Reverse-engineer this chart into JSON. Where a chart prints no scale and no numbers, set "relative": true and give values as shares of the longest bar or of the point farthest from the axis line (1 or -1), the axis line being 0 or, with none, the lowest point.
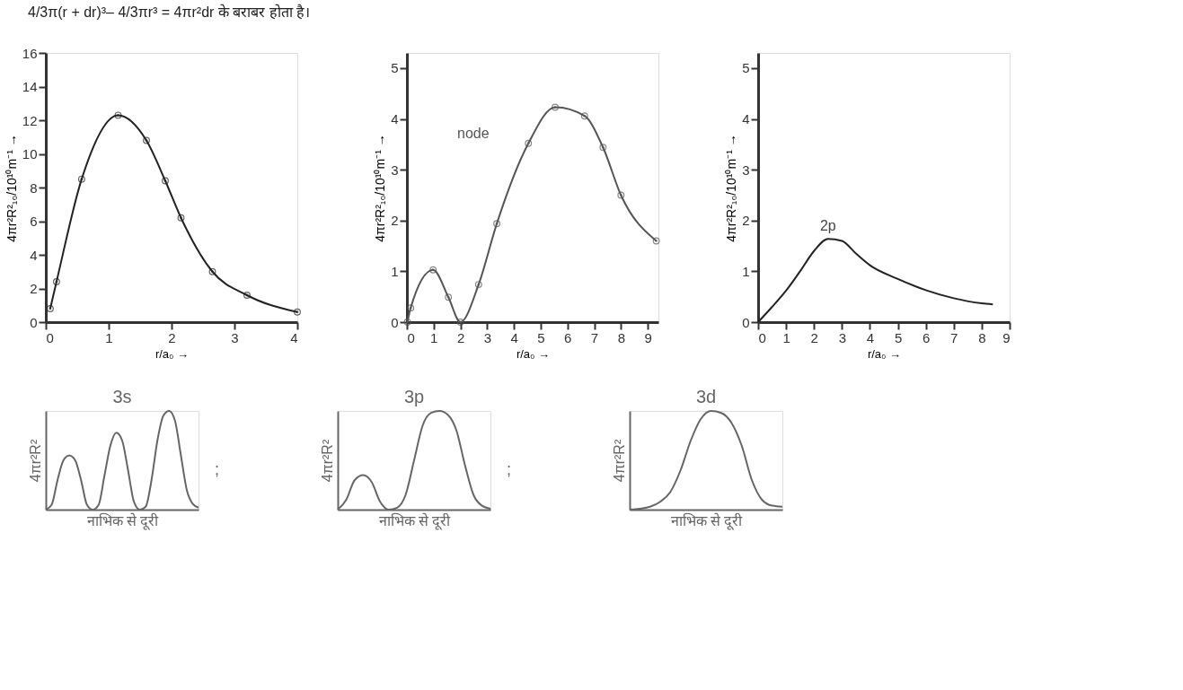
{
  "chart_data": [
    {
      "type": "line",
      "xlabel": "r/a₀ →",
      "ylabel": "4πr²R²₁₀/10¹⁰m⁻¹ →",
      "xlim": [
        0,
        4
      ],
      "ylim": [
        0,
        16
      ],
      "xticks": [
        0,
        1,
        2,
        3,
        4
      ],
      "yticks": [
        0,
        2,
        4,
        6,
        8,
        10,
        12,
        14,
        16
      ],
      "marker": "circle",
      "annotations": [
        "4/3π(r + dr)³– 4/3πr³ = 4πr²dr के बराबर होता है।"
      ],
      "series": [
        {
          "color": "#222222",
          "x": [
            0.07,
            0.17,
            0.57,
            1.15,
            1.6,
            1.9,
            2.15,
            2.65,
            3.2,
            4.0
          ],
          "values": [
            0.8,
            2.4,
            8.5,
            12.3,
            10.8,
            8.4,
            6.2,
            3.0,
            1.6,
            0.6
          ]
        }
      ]
    },
    {
      "type": "line",
      "xlabel": "r/a₀ →",
      "ylabel": "4πr²R²₁₀/10¹⁰m⁻¹ →",
      "xlim": [
        0,
        9.4
      ],
      "ylim": [
        0,
        5.3
      ],
      "xticks": [
        0,
        1,
        2,
        3,
        4,
        5,
        6,
        7,
        8,
        9
      ],
      "yticks": [
        0,
        1,
        2,
        3,
        4,
        5
      ],
      "marker": "circle",
      "annotations": [
        "node"
      ],
      "series": [
        {
          "color": "#555555",
          "x": [
            0.02,
            0.14,
            0.98,
            1.55,
            2.0,
            2.68,
            3.36,
            4.54,
            5.54,
            6.64,
            7.33,
            8.0,
            9.32
          ],
          "values": [
            0.0,
            0.28,
            1.03,
            0.49,
            0.0,
            0.74,
            1.94,
            3.52,
            4.23,
            4.06,
            3.44,
            2.5,
            1.6
          ]
        }
      ]
    },
    {
      "type": "line",
      "xlabel": "r/a₀ →",
      "ylabel": "4πr²R²₁₀/10¹⁰m⁻¹ →",
      "xlim": [
        0,
        9
      ],
      "ylim": [
        0,
        5.3
      ],
      "xticks": [
        0,
        1,
        2,
        3,
        4,
        5,
        6,
        7,
        8,
        9
      ],
      "yticks": [
        0,
        1,
        2,
        3,
        4,
        5
      ],
      "annotations": [
        {
          "text": "2p",
          "x": 2.5,
          "y": 1.65
        }
      ],
      "series": [
        {
          "color": "#222222",
          "x": [
            0,
            0.5,
            1,
            1.5,
            2,
            2.5,
            3,
            3.5,
            4,
            5,
            6,
            7,
            8,
            8.4
          ],
          "values": [
            0,
            0.3,
            0.62,
            1.0,
            1.4,
            1.64,
            1.6,
            1.35,
            1.12,
            0.85,
            0.63,
            0.47,
            0.37,
            0.35
          ]
        }
      ]
    },
    {
      "type": "line",
      "relative": true,
      "title": "3s",
      "xlabel": "नाभिक से दूरी",
      "ylabel": "4πr²R²",
      "annotations": [
        ";"
      ],
      "categories": [
        null,
        null,
        null,
        null,
        null,
        null,
        null,
        null,
        null,
        null,
        null,
        null,
        null,
        null,
        null,
        null,
        null,
        null,
        null,
        null,
        null,
        null,
        null,
        null,
        null,
        null,
        null
      ],
      "series": [
        {
          "color": "#666666",
          "values": [
            0,
            0.05,
            0.3,
            0.5,
            0.55,
            0.5,
            0.3,
            0.05,
            0,
            0.05,
            0.35,
            0.65,
            0.78,
            0.7,
            0.4,
            0.08,
            0,
            0.03,
            0.3,
            0.7,
            0.95,
            1.0,
            0.9,
            0.55,
            0.2,
            0.06,
            0.02
          ]
        }
      ]
    },
    {
      "type": "line",
      "relative": true,
      "title": "3p",
      "xlabel": "नाभिक से दूरी",
      "ylabel": "4πr²R²",
      "annotations": [
        ";"
      ],
      "categories": [
        null,
        null,
        null,
        null,
        null,
        null,
        null,
        null,
        null,
        null,
        null,
        null,
        null,
        null,
        null,
        null,
        null,
        null,
        null
      ],
      "series": [
        {
          "color": "#666666",
          "values": [
            0,
            0.1,
            0.3,
            0.35,
            0.28,
            0.08,
            0,
            0.02,
            0.15,
            0.5,
            0.85,
            0.98,
            1.0,
            0.96,
            0.8,
            0.45,
            0.15,
            0.04,
            0.01
          ]
        }
      ]
    },
    {
      "type": "line",
      "relative": true,
      "title": "3d",
      "xlabel": "नाभिक से दूरी",
      "ylabel": "4πr²R²",
      "categories": [
        null,
        null,
        null,
        null,
        null,
        null,
        null,
        null,
        null,
        null,
        null,
        null,
        null,
        null,
        null,
        null
      ],
      "series": [
        {
          "color": "#666666",
          "values": [
            0,
            0.01,
            0.03,
            0.08,
            0.18,
            0.4,
            0.7,
            0.92,
            1.0,
            0.98,
            0.88,
            0.65,
            0.3,
            0.1,
            0.04,
            0.03
          ]
        }
      ]
    }
  ]
}
